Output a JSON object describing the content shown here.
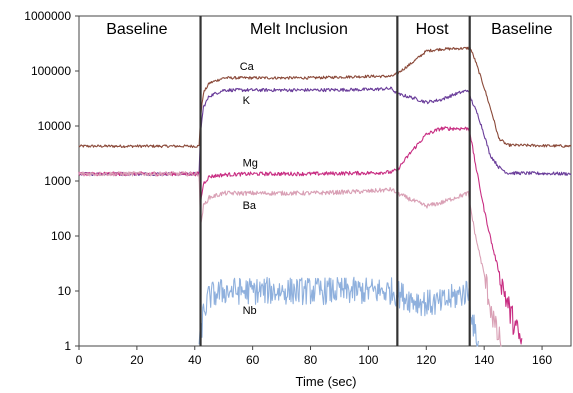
{
  "chart_data": {
    "type": "line",
    "title": "",
    "xlabel": "Time (sec)",
    "ylabel": "",
    "xlim": [
      0,
      170
    ],
    "ylim": [
      1,
      1000000
    ],
    "yscale": "log",
    "grid": false,
    "x_ticks": [
      "0",
      "20",
      "40",
      "60",
      "80",
      "100",
      "120",
      "140",
      "160"
    ],
    "y_ticks": [
      "1",
      "10",
      "100",
      "1000",
      "10000",
      "100000",
      "1000000"
    ],
    "regions": [
      {
        "label": "Baseline",
        "x_center": 20
      },
      {
        "label": "Melt Inclusion",
        "x_center": 76
      },
      {
        "label": "Host",
        "x_center": 122
      },
      {
        "label": "Baseline",
        "x_center": 153
      }
    ],
    "boundaries": [
      42,
      110,
      135
    ],
    "series": [
      {
        "name": "Ca",
        "color": "#8b4a3a",
        "label_x": 50,
        "points": [
          [
            0,
            4300
          ],
          [
            41.5,
            4300
          ],
          [
            42,
            15000
          ],
          [
            43,
            40000
          ],
          [
            45,
            60000
          ],
          [
            50,
            75000
          ],
          [
            60,
            75000
          ],
          [
            80,
            75000
          ],
          [
            100,
            80000
          ],
          [
            108,
            80000
          ],
          [
            110,
            90000
          ],
          [
            115,
            140000
          ],
          [
            120,
            230000
          ],
          [
            125,
            250000
          ],
          [
            130,
            255000
          ],
          [
            134.5,
            260000
          ],
          [
            135,
            280000
          ],
          [
            137,
            150000
          ],
          [
            140,
            50000
          ],
          [
            143,
            15000
          ],
          [
            145,
            6000
          ],
          [
            148,
            4500
          ],
          [
            170,
            4300
          ]
        ]
      },
      {
        "name": "K",
        "color": "#6a3d9a",
        "label_x": 51,
        "points": [
          [
            0,
            1350
          ],
          [
            41.5,
            1350
          ],
          [
            42,
            8000
          ],
          [
            43,
            22000
          ],
          [
            45,
            35000
          ],
          [
            50,
            45000
          ],
          [
            60,
            45000
          ],
          [
            80,
            45000
          ],
          [
            100,
            46000
          ],
          [
            108,
            48000
          ],
          [
            110,
            38000
          ],
          [
            115,
            33000
          ],
          [
            120,
            27000
          ],
          [
            125,
            30000
          ],
          [
            130,
            38000
          ],
          [
            134.5,
            45000
          ],
          [
            135,
            35000
          ],
          [
            138,
            15000
          ],
          [
            140,
            7000
          ],
          [
            142,
            3000
          ],
          [
            145,
            1800
          ],
          [
            148,
            1400
          ],
          [
            170,
            1350
          ]
        ]
      },
      {
        "name": "Mg",
        "color": "#c82d82",
        "label_x": 51,
        "points": [
          [
            0,
            1350
          ],
          [
            41.5,
            1350
          ],
          [
            42,
            400
          ],
          [
            43,
            900
          ],
          [
            45,
            1200
          ],
          [
            50,
            1300
          ],
          [
            60,
            1350
          ],
          [
            80,
            1350
          ],
          [
            100,
            1400
          ],
          [
            108,
            1450
          ],
          [
            110,
            1600
          ],
          [
            115,
            3500
          ],
          [
            120,
            7000
          ],
          [
            125,
            9000
          ],
          [
            130,
            9000
          ],
          [
            134.5,
            9000
          ],
          [
            135,
            8000
          ],
          [
            137,
            2000
          ],
          [
            140,
            300
          ],
          [
            143,
            60
          ],
          [
            146,
            15
          ],
          [
            149,
            4
          ],
          [
            152,
            1.5
          ],
          [
            153,
            1
          ]
        ]
      },
      {
        "name": "Ba",
        "color": "#d9a0b5",
        "label_x": 51,
        "points": [
          [
            0,
            1350
          ],
          [
            41.5,
            1350
          ],
          [
            42,
            150
          ],
          [
            43,
            350
          ],
          [
            45,
            500
          ],
          [
            50,
            600
          ],
          [
            60,
            600
          ],
          [
            80,
            600
          ],
          [
            100,
            650
          ],
          [
            108,
            700
          ],
          [
            110,
            600
          ],
          [
            115,
            450
          ],
          [
            120,
            350
          ],
          [
            125,
            400
          ],
          [
            130,
            500
          ],
          [
            134.5,
            600
          ],
          [
            135,
            400
          ],
          [
            137,
            100
          ],
          [
            140,
            20
          ],
          [
            142,
            6
          ],
          [
            144,
            2
          ],
          [
            146,
            1
          ]
        ]
      },
      {
        "name": "Nb",
        "color": "#8fb0dd",
        "label_x": 51,
        "points": [
          [
            41.5,
            1
          ],
          [
            42,
            1.5
          ],
          [
            43,
            4
          ],
          [
            45,
            8
          ],
          [
            50,
            10
          ],
          [
            60,
            10
          ],
          [
            80,
            10
          ],
          [
            100,
            10
          ],
          [
            108,
            10
          ],
          [
            110,
            9
          ],
          [
            115,
            7
          ],
          [
            120,
            6
          ],
          [
            125,
            6
          ],
          [
            130,
            8
          ],
          [
            134.5,
            10
          ],
          [
            135,
            7
          ],
          [
            136,
            3
          ],
          [
            137,
            1.5
          ],
          [
            138,
            1
          ]
        ]
      }
    ]
  }
}
